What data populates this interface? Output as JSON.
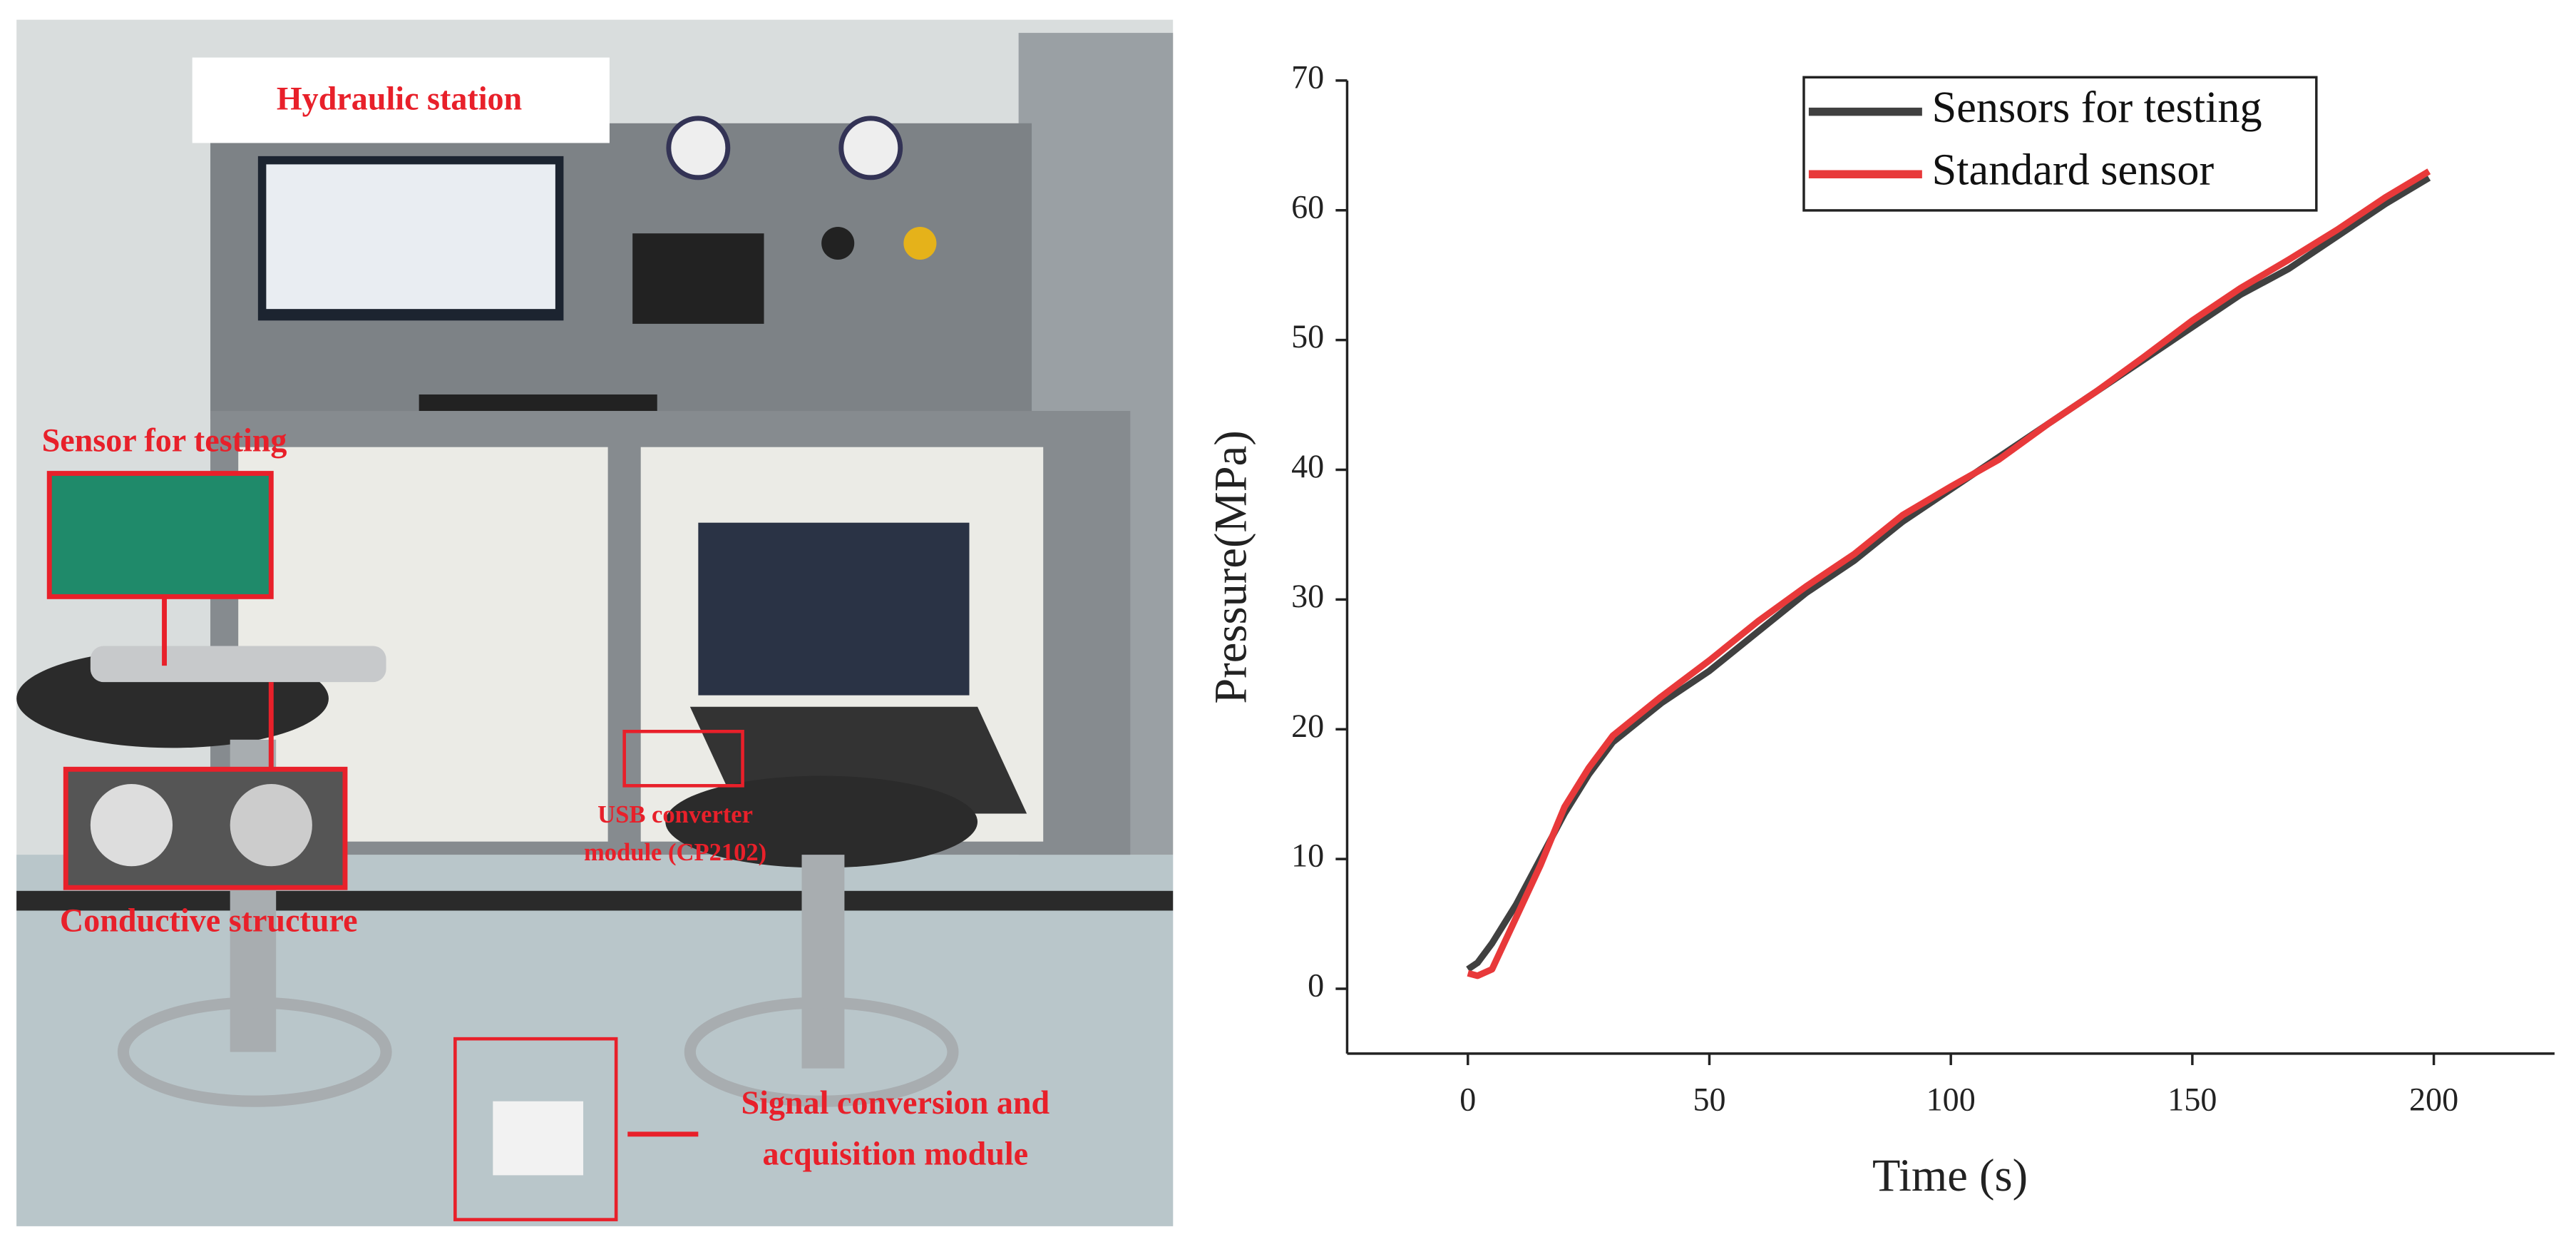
{
  "photo": {
    "labels": [
      "Hydraulic station",
      "Sensor for testing",
      "Conductive structure",
      "USB converter",
      "module (CP2102)",
      "Signal conversion and",
      "acquisition module"
    ]
  },
  "chart_data": {
    "type": "line",
    "xlabel": "Time (s)",
    "ylabel": "Pressure(MPa)",
    "x": [
      0,
      2,
      5,
      10,
      15,
      20,
      25,
      30,
      40,
      50,
      60,
      70,
      80,
      90,
      100,
      110,
      120,
      130,
      140,
      150,
      160,
      170,
      180,
      190,
      199
    ],
    "series": [
      {
        "name": "Sensors for testing",
        "color": "#404040",
        "values": [
          1.5,
          2,
          3.5,
          6.5,
          10,
          13.5,
          16.5,
          19,
          22,
          24.5,
          27.5,
          30.5,
          33,
          36,
          38.5,
          41,
          43.5,
          46,
          48.5,
          51,
          53.5,
          55.5,
          58,
          60.5,
          62.5
        ]
      },
      {
        "name": "Standard sensor",
        "color": "#e8393a",
        "values": [
          1.2,
          1,
          1.5,
          5.5,
          9.5,
          14,
          17,
          19.5,
          22.5,
          25.3,
          28.3,
          31,
          33.5,
          36.5,
          38.7,
          40.8,
          43.5,
          46,
          48.7,
          51.5,
          54,
          56.2,
          58.5,
          61,
          63
        ]
      }
    ],
    "xlim": [
      -25,
      225
    ],
    "ylim": [
      -5,
      70
    ],
    "xticks": [
      0,
      50,
      100,
      150,
      200
    ],
    "yticks": [
      0,
      10,
      20,
      30,
      40,
      50,
      60,
      70
    ],
    "legend": "upper right"
  }
}
